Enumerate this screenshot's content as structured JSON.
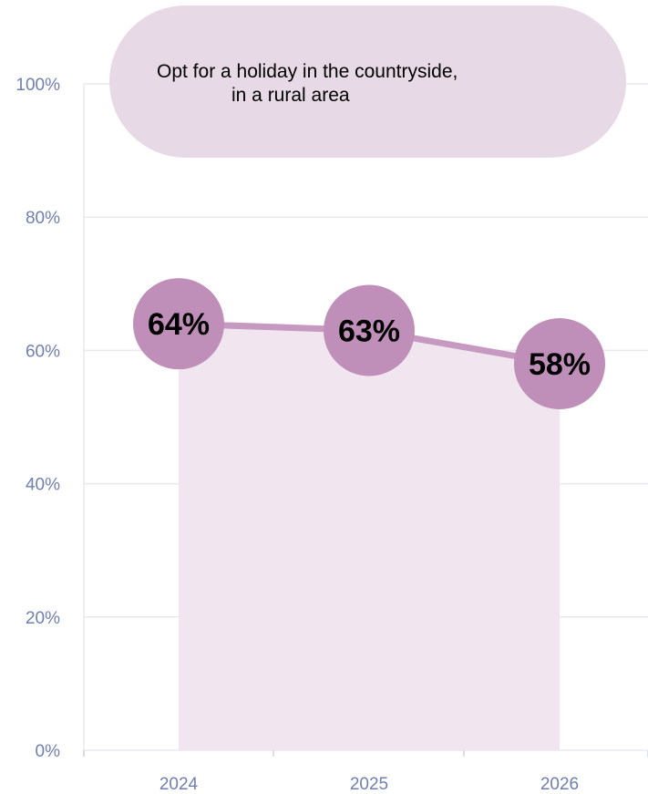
{
  "chart_data": {
    "type": "line",
    "title_line1": "Opt for a holiday in the countryside,",
    "title_line2": "in a rural area",
    "x": [
      "2024",
      "2025",
      "2026"
    ],
    "series": [
      {
        "values": [
          64,
          63,
          58
        ]
      }
    ],
    "data_labels": [
      "64%",
      "63%",
      "58%"
    ],
    "y_ticks": [
      "0%",
      "20%",
      "40%",
      "60%",
      "80%",
      "100%"
    ],
    "ylim": [
      0,
      100
    ],
    "grid": true,
    "colors": {
      "marker": "#bf8fb9",
      "line": "#c69ac0",
      "area": "#f1e6ef",
      "pill": "#e8d9e6",
      "tick": "#6f7fb0",
      "grid": "#e8e8f0"
    }
  }
}
